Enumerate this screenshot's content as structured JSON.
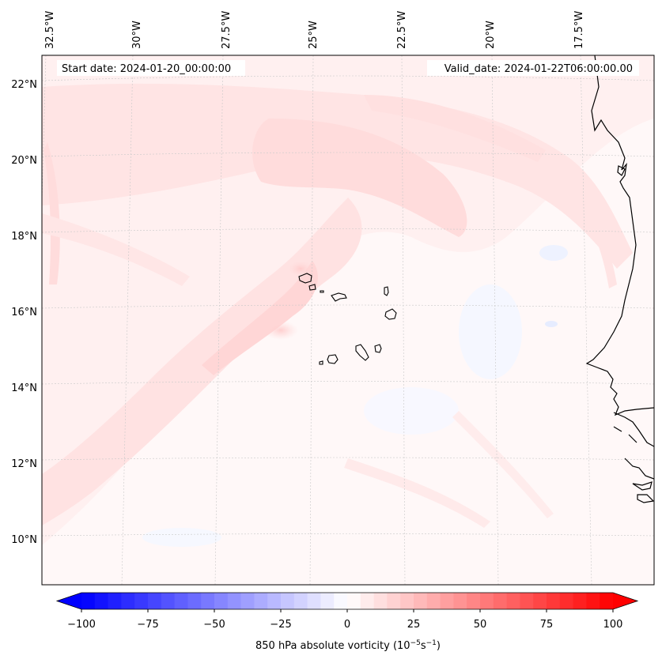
{
  "header": {
    "start_date": "Start date: 2024-01-20_00:00:00",
    "valid_date": "Valid_date: 2024-01-22T06:00:00.00"
  },
  "map": {
    "field": "850 hPa absolute vorticity",
    "lon_labels": [
      "32.5°W",
      "30°W",
      "27.5°W",
      "25°W",
      "22.5°W",
      "20°W",
      "17.5°W"
    ],
    "lat_labels": [
      "22°N",
      "20°N",
      "18°N",
      "16°N",
      "14°N",
      "12°N",
      "10°N"
    ],
    "islands": [
      "Santo Antão",
      "São Vicente",
      "Santa Luzia",
      "São Nicolau",
      "Sal",
      "Boa Vista",
      "Santiago",
      "Fogo",
      "Brava",
      "Maio"
    ]
  },
  "colorbar": {
    "ticks": [
      "−100",
      "−75",
      "−50",
      "−25",
      "0",
      "25",
      "50",
      "75",
      "100"
    ],
    "values": [
      -100,
      -75,
      -50,
      -25,
      0,
      25,
      50,
      75,
      100
    ],
    "label_prefix": "850 hPa absolute vorticity (10",
    "label_exp1": "−5",
    "label_mid": "s",
    "label_exp2": "−1",
    "label_suffix": ")",
    "cmap_low": "#0000ff",
    "cmap_mid": "#ffffff",
    "cmap_high": "#ff0000",
    "levels": 40
  },
  "colors": {
    "positive_tint": "#ffe8e8",
    "positive_strong": "#ffd4d4",
    "negative_tint": "#f2f5ff",
    "coastline": "#000000"
  }
}
